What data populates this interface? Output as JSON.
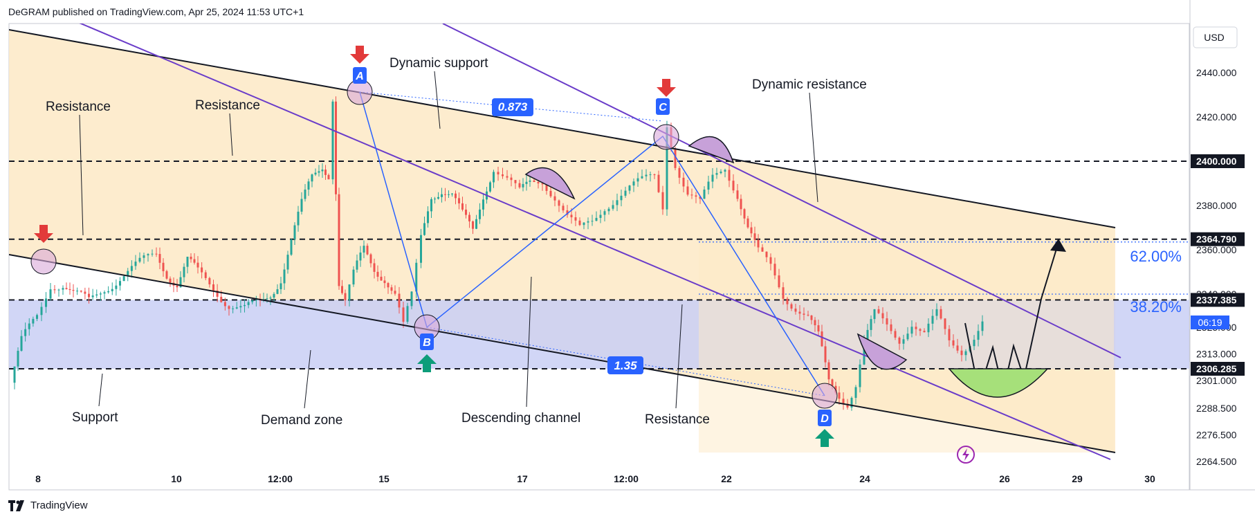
{
  "header": {
    "text": "DeGRAM published on TradingView.com, Apr 25, 2024 11:53 UTC+1"
  },
  "footer": {
    "brand": "TradingView"
  },
  "currency": "USD",
  "current_price_timer": "06:19",
  "colors": {
    "up": "#26a69a",
    "down": "#ef5350",
    "channel": "#fde9c6",
    "demand": "#c9cff5",
    "fib_blue": "#2962ff",
    "purple": "#6a3cc9"
  },
  "chart_data": {
    "type": "candlestick",
    "symbol_quote": "USD",
    "ylim": [
      2258,
      2455
    ],
    "y_ticks": [
      2264.5,
      2276.5,
      2288.5,
      2301.0,
      2313.0,
      2325.0,
      2340.0,
      2360.0,
      2380.0,
      2400.0,
      2420.0,
      2440.0
    ],
    "y_tick_labels": [
      "2264.500",
      "2276.500",
      "2288.500",
      "2301.000",
      "2313.000",
      "2325.000",
      "2340.000",
      "2360.000",
      "2380.000",
      "2400.000",
      "2420.000",
      "2440.000"
    ],
    "price_labels": [
      {
        "value": 2400.0,
        "text": "2400.000",
        "style": "dark"
      },
      {
        "value": 2364.79,
        "text": "2364.790",
        "style": "dark"
      },
      {
        "value": 2337.385,
        "text": "2337.385",
        "style": "dark"
      },
      {
        "value": 2306.285,
        "text": "2306.285",
        "style": "dark"
      }
    ],
    "x_ticks": [
      "8",
      "10",
      "12:00",
      "15",
      "17",
      "12:00",
      "22",
      "24",
      "26",
      "29",
      "30"
    ],
    "horizontal_levels": [
      2400.0,
      2364.79,
      2337.385,
      2306.285
    ],
    "demand_zone": [
      2306.285,
      2337.385
    ],
    "fib_levels": [
      {
        "label": "62.00%",
        "value": 2364.79
      },
      {
        "label": "38.20%",
        "value": 2340.0
      }
    ],
    "ratios": [
      "0.873",
      "1.35"
    ],
    "pivots": [
      {
        "label": "A",
        "price": 2431,
        "arrow": "down"
      },
      {
        "label": "B",
        "price": 2325,
        "arrow": "up"
      },
      {
        "label": "C",
        "price": 2418,
        "arrow": "down"
      },
      {
        "label": "D",
        "price": 2292,
        "arrow": "up"
      }
    ],
    "annotations": [
      "Resistance",
      "Resistance",
      "Dynamic support",
      "Dynamic resistance",
      "Support",
      "Demand zone",
      "Descending channel",
      "Resistance"
    ],
    "path_seed": [
      [
        0,
        2300
      ],
      [
        10,
        2318
      ],
      [
        25,
        2330
      ],
      [
        38,
        2345
      ],
      [
        50,
        2345
      ],
      [
        60,
        2340
      ],
      [
        75,
        2336
      ],
      [
        90,
        2343
      ],
      [
        105,
        2348
      ],
      [
        120,
        2352
      ],
      [
        140,
        2358
      ],
      [
        150,
        2350
      ],
      [
        160,
        2345
      ],
      [
        170,
        2355
      ],
      [
        180,
        2349
      ],
      [
        195,
        2343
      ],
      [
        210,
        2336
      ],
      [
        225,
        2333
      ],
      [
        240,
        2335
      ],
      [
        250,
        2340
      ],
      [
        260,
        2348
      ],
      [
        270,
        2365
      ],
      [
        280,
        2380
      ],
      [
        290,
        2392
      ],
      [
        300,
        2398
      ],
      [
        306,
        2395
      ],
      [
        310,
        2430
      ],
      [
        316,
        2345
      ],
      [
        322,
        2336
      ],
      [
        330,
        2348
      ],
      [
        340,
        2360
      ],
      [
        350,
        2352
      ],
      [
        360,
        2348
      ],
      [
        370,
        2340
      ],
      [
        378,
        2325
      ],
      [
        386,
        2338
      ],
      [
        395,
        2365
      ],
      [
        405,
        2385
      ],
      [
        415,
        2388
      ],
      [
        425,
        2385
      ],
      [
        435,
        2375
      ],
      [
        445,
        2368
      ],
      [
        455,
        2385
      ],
      [
        465,
        2398
      ],
      [
        478,
        2392
      ],
      [
        490,
        2385
      ],
      [
        500,
        2390
      ],
      [
        512,
        2392
      ],
      [
        524,
        2385
      ],
      [
        536,
        2375
      ],
      [
        548,
        2368
      ],
      [
        560,
        2372
      ],
      [
        572,
        2380
      ],
      [
        584,
        2385
      ],
      [
        596,
        2388
      ],
      [
        608,
        2390
      ],
      [
        620,
        2393
      ],
      [
        628,
        2380
      ],
      [
        632,
        2418
      ],
      [
        640,
        2400
      ],
      [
        652,
        2385
      ],
      [
        664,
        2380
      ],
      [
        676,
        2392
      ],
      [
        688,
        2398
      ],
      [
        700,
        2386
      ],
      [
        710,
        2370
      ],
      [
        720,
        2358
      ],
      [
        732,
        2352
      ],
      [
        744,
        2340
      ],
      [
        756,
        2335
      ],
      [
        768,
        2330
      ],
      [
        778,
        2320
      ],
      [
        788,
        2300
      ],
      [
        798,
        2295
      ],
      [
        806,
        2292
      ],
      [
        814,
        2300
      ],
      [
        822,
        2318
      ],
      [
        832,
        2330
      ],
      [
        844,
        2325
      ],
      [
        856,
        2320
      ],
      [
        868,
        2328
      ],
      [
        880,
        2322
      ],
      [
        892,
        2330
      ],
      [
        904,
        2318
      ],
      [
        916,
        2315
      ],
      [
        928,
        2322
      ],
      [
        936,
        2328
      ]
    ]
  }
}
